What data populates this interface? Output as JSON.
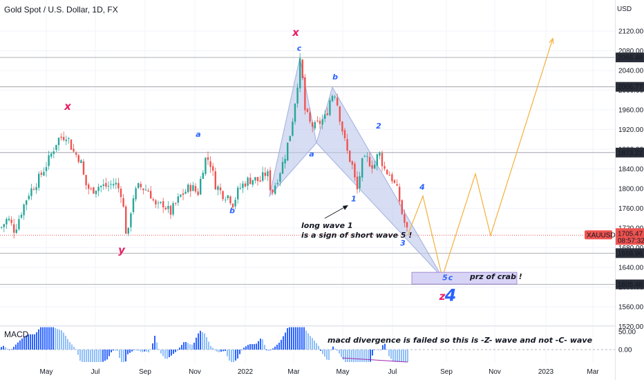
{
  "header": {
    "symbol_title": "Gold Spot / U.S. Dollar, 1D, FX"
  },
  "colors": {
    "up": "#26a69a",
    "down": "#ef5350",
    "macd_pos": "#2962ff",
    "pattern_fill": "#bcc6ea",
    "pattern_stroke": "#9fb0e0",
    "projection": "#f4b03a",
    "wave_label": "#2962ff",
    "xy_label": "#e91e63",
    "last_price_bg": "#ef5350",
    "level_bg": "#2a2e39"
  },
  "chart_data": {
    "type": "candlestick",
    "symbol": "XAUUSD",
    "currency": "USD",
    "timeframe": "1D",
    "ylim": [
      1500,
      2145
    ],
    "y_ticks": [
      1520,
      1560,
      1600,
      1640,
      1680,
      1720,
      1760,
      1800,
      1840,
      1880,
      1920,
      1960,
      2000,
      2040,
      2080,
      2120
    ],
    "x_labels": [
      "May",
      "Jul",
      "Sep",
      "Nov",
      "2022",
      "Mar",
      "May",
      "Jul",
      "Sep",
      "Nov",
      "2023",
      "Mar"
    ],
    "price_anchors": [
      [
        0,
        1720
      ],
      [
        10,
        1740
      ],
      [
        20,
        1715
      ],
      [
        30,
        1755
      ],
      [
        40,
        1790
      ],
      [
        55,
        1820
      ],
      [
        70,
        1860
      ],
      [
        82,
        1900
      ],
      [
        95,
        1910
      ],
      [
        105,
        1875
      ],
      [
        115,
        1860
      ],
      [
        122,
        1810
      ],
      [
        130,
        1795
      ],
      [
        140,
        1805
      ],
      [
        155,
        1805
      ],
      [
        165,
        1812
      ],
      [
        175,
        1790
      ],
      [
        183,
        1690
      ],
      [
        190,
        1780
      ],
      [
        200,
        1805
      ],
      [
        215,
        1795
      ],
      [
        225,
        1760
      ],
      [
        235,
        1770
      ],
      [
        245,
        1750
      ],
      [
        260,
        1785
      ],
      [
        275,
        1805
      ],
      [
        285,
        1790
      ],
      [
        295,
        1860
      ],
      [
        302,
        1860
      ],
      [
        310,
        1810
      ],
      [
        320,
        1790
      ],
      [
        330,
        1785
      ],
      [
        336,
        1770
      ],
      [
        345,
        1800
      ],
      [
        355,
        1815
      ],
      [
        365,
        1820
      ],
      [
        375,
        1815
      ],
      [
        385,
        1835
      ],
      [
        392,
        1790
      ],
      [
        400,
        1820
      ],
      [
        410,
        1860
      ],
      [
        420,
        1920
      ],
      [
        428,
        2000
      ],
      [
        434,
        2066
      ],
      [
        440,
        1960
      ],
      [
        448,
        1930
      ],
      [
        455,
        1925
      ],
      [
        462,
        1935
      ],
      [
        470,
        1945
      ],
      [
        478,
        1990
      ],
      [
        484,
        1995
      ],
      [
        492,
        1935
      ],
      [
        500,
        1880
      ],
      [
        510,
        1840
      ],
      [
        515,
        1790
      ],
      [
        522,
        1850
      ],
      [
        530,
        1860
      ],
      [
        540,
        1845
      ],
      [
        547,
        1875
      ],
      [
        555,
        1840
      ],
      [
        565,
        1825
      ],
      [
        575,
        1790
      ],
      [
        582,
        1740
      ],
      [
        590,
        1705
      ]
    ],
    "macd_hist_range": [
      -0.35,
      1.0
    ],
    "price_levels": [
      {
        "value": "2066.48",
        "label": "2066.48",
        "y": 2066.48
      },
      {
        "value": "2006.77",
        "label": "2006.77",
        "y": 2006.77
      },
      {
        "value": "1873.22",
        "label": "1873.22",
        "y": 1873.22
      },
      {
        "value": "1668.96",
        "label": "1668.96",
        "y": 1668.96
      },
      {
        "value": "1605.48",
        "label": "1605.48",
        "y": 1605.48
      }
    ],
    "last_price": {
      "symbol": "XAUUSD",
      "price": "1705.47",
      "countdown": "08:57:32",
      "y": 1705.47
    },
    "harmonic_pattern": {
      "name": "crab",
      "points": [
        [
          390,
          1785
        ],
        [
          434,
          2066
        ],
        [
          458,
          1893
        ],
        [
          481,
          2006
        ],
        [
          640,
          1620
        ]
      ]
    },
    "projection_path": [
      [
        590,
        1705
      ],
      [
        612,
        1785
      ],
      [
        640,
        1620
      ],
      [
        688,
        1830
      ],
      [
        710,
        1705
      ],
      [
        800,
        2105
      ]
    ],
    "prz_zone": {
      "label": "prz of crab !",
      "y_from": 1630,
      "y_to": 1606
    },
    "wave_labels": [
      {
        "text": "x",
        "kind": "xy",
        "x": 98,
        "y": 1960
      },
      {
        "text": "y",
        "kind": "xy",
        "x": 176,
        "y": 1668
      },
      {
        "text": "x",
        "kind": "xy",
        "x": 428,
        "y": 2110
      },
      {
        "text": "z",
        "kind": "xy",
        "x": 640,
        "y": 1574
      },
      {
        "text": "4",
        "kind": "wave-big",
        "x": 652,
        "y": 1572
      },
      {
        "text": "a",
        "kind": "wave",
        "x": 287,
        "y": 1905
      },
      {
        "text": "b",
        "kind": "wave",
        "x": 336,
        "y": 1750
      },
      {
        "text": "c",
        "kind": "wave",
        "x": 433,
        "y": 2080
      },
      {
        "text": "a",
        "kind": "wave",
        "x": 451,
        "y": 1865
      },
      {
        "text": "b",
        "kind": "wave",
        "x": 485,
        "y": 2022
      },
      {
        "text": "1",
        "kind": "wave",
        "x": 512,
        "y": 1774
      },
      {
        "text": "2",
        "kind": "wave",
        "x": 548,
        "y": 1922
      },
      {
        "text": "3",
        "kind": "wave",
        "x": 583,
        "y": 1684
      },
      {
        "text": "4",
        "kind": "wave",
        "x": 611,
        "y": 1798
      },
      {
        "text": "5",
        "kind": "wave",
        "x": 644,
        "y": 1614
      },
      {
        "text": "c",
        "kind": "wave",
        "x": 652,
        "y": 1614
      }
    ],
    "notes": {
      "long_wave": [
        "long wave 1",
        "is a sign of short wave 5 !"
      ],
      "macd": "macd divergence is failed so this is -Z- wave and not -C- wave"
    }
  },
  "macd_panel": {
    "label": "MACD",
    "ticks": [
      "50.00",
      "0.00"
    ]
  },
  "price_axis": {
    "currency_label": "USD"
  }
}
